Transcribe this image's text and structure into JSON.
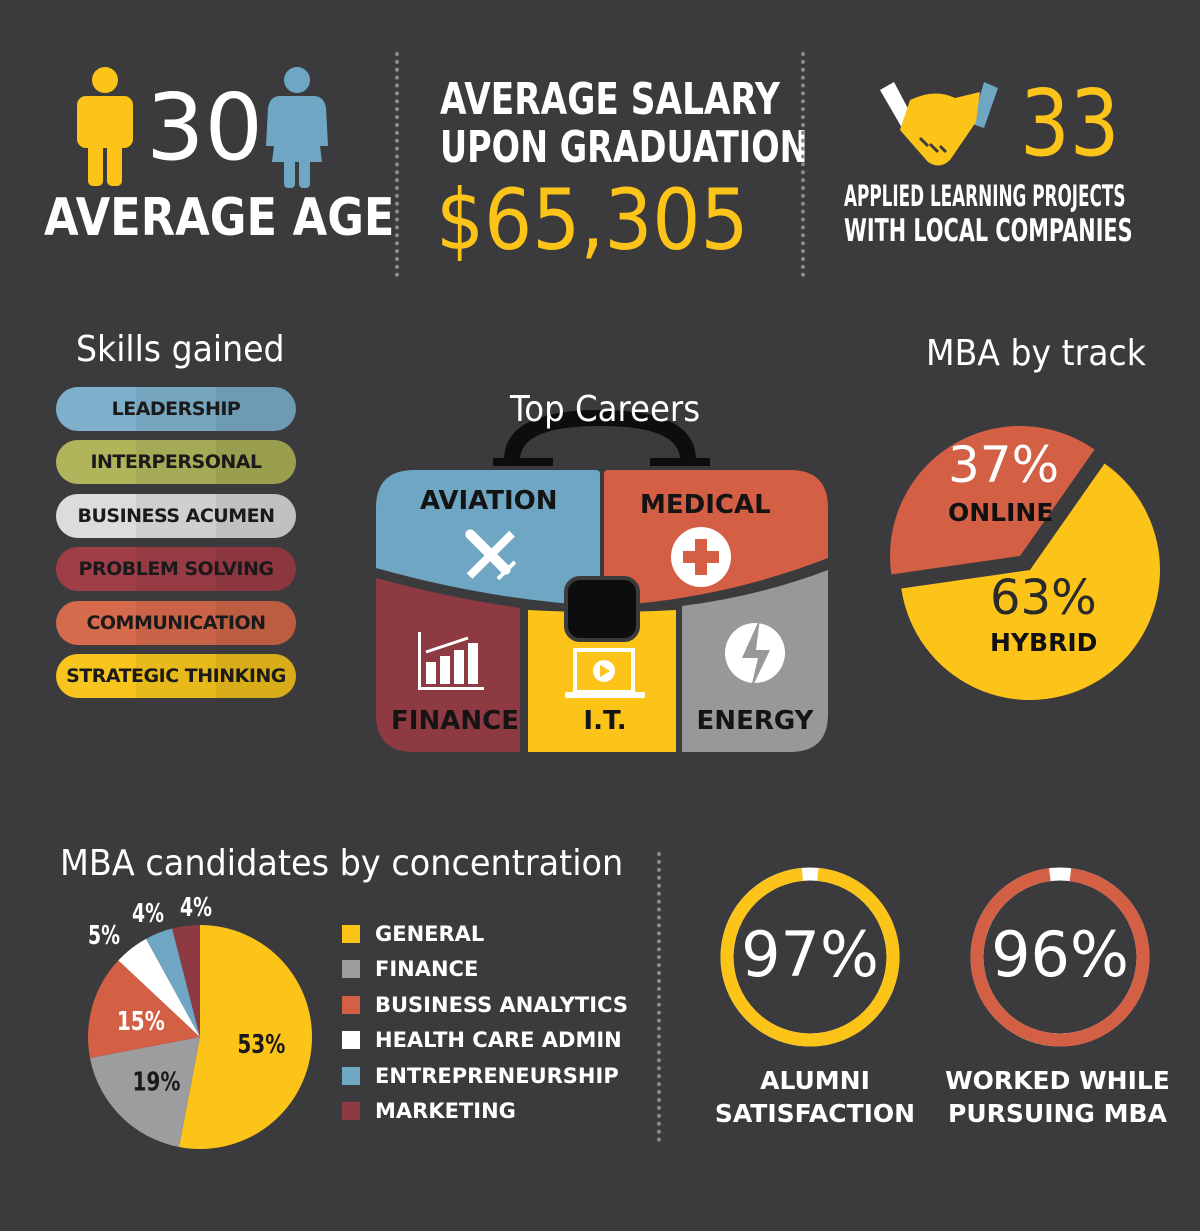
{
  "age": {
    "value": "30",
    "label": "AVERAGE AGE"
  },
  "salary": {
    "line1": "AVERAGE SALARY",
    "line2": "UPON GRADUATION",
    "value": "$65,305"
  },
  "projects": {
    "value": "33",
    "line1": "APPLIED LEARNING PROJECTS",
    "line2": "WITH LOCAL COMPANIES"
  },
  "skills": {
    "title": "Skills gained",
    "items": [
      {
        "label": "LEADERSHIP",
        "color": "#7eb0cb"
      },
      {
        "label": "INTERPERSONAL",
        "color": "#b0b55c"
      },
      {
        "label": "BUSINESS ACUMEN",
        "color": "#dcdcdc"
      },
      {
        "label": "PROBLEM SOLVING",
        "color": "#a03e48"
      },
      {
        "label": "COMMUNICATION",
        "color": "#d66a4c"
      },
      {
        "label": "STRATEGIC THINKING",
        "color": "#f7c51d"
      }
    ]
  },
  "careers": {
    "title": "Top Careers",
    "items": [
      {
        "label": "AVIATION",
        "icon": "airplane-icon",
        "color": "#6fa6c3"
      },
      {
        "label": "MEDICAL",
        "icon": "medical-cross-icon",
        "color": "#d45f45"
      },
      {
        "label": "FINANCE",
        "icon": "bar-chart-icon",
        "color": "#8e3a42"
      },
      {
        "label": "I.T.",
        "icon": "laptop-play-icon",
        "color": "#fcc419"
      },
      {
        "label": "ENERGY",
        "icon": "lightning-icon",
        "color": "#98989b"
      }
    ]
  },
  "chart_data": [
    {
      "type": "pie",
      "title": "MBA by track",
      "slices": [
        {
          "label": "ONLINE",
          "value": 37,
          "text": "37%",
          "color": "#d35f45"
        },
        {
          "label": "HYBRID",
          "value": 63,
          "text": "63%",
          "color": "#fcc419"
        }
      ]
    },
    {
      "type": "pie",
      "title": "MBA candidates by concentration",
      "slices": [
        {
          "label": "GENERAL",
          "value": 53,
          "text": "53%",
          "color": "#fcc419"
        },
        {
          "label": "FINANCE",
          "value": 19,
          "text": "19%",
          "color": "#9d9d9f"
        },
        {
          "label": "BUSINESS ANALYTICS",
          "value": 15,
          "text": "15%",
          "color": "#d35f45"
        },
        {
          "label": "HEALTH CARE ADMIN",
          "value": 5,
          "text": "5%",
          "color": "#ffffff"
        },
        {
          "label": "ENTREPRENEURSHIP",
          "value": 4,
          "text": "4%",
          "color": "#6fa6c3"
        },
        {
          "label": "MARKETING",
          "value": 4,
          "text": "4%",
          "color": "#8e3a42"
        }
      ]
    },
    {
      "type": "ring",
      "value": 97,
      "text": "97%",
      "line1": "ALUMNI",
      "line2": "SATISFACTION",
      "color": "#fcc419"
    },
    {
      "type": "ring",
      "value": 96,
      "text": "96%",
      "line1": "WORKED WHILE",
      "line2": "PURSUING MBA",
      "color": "#d35f45"
    }
  ]
}
